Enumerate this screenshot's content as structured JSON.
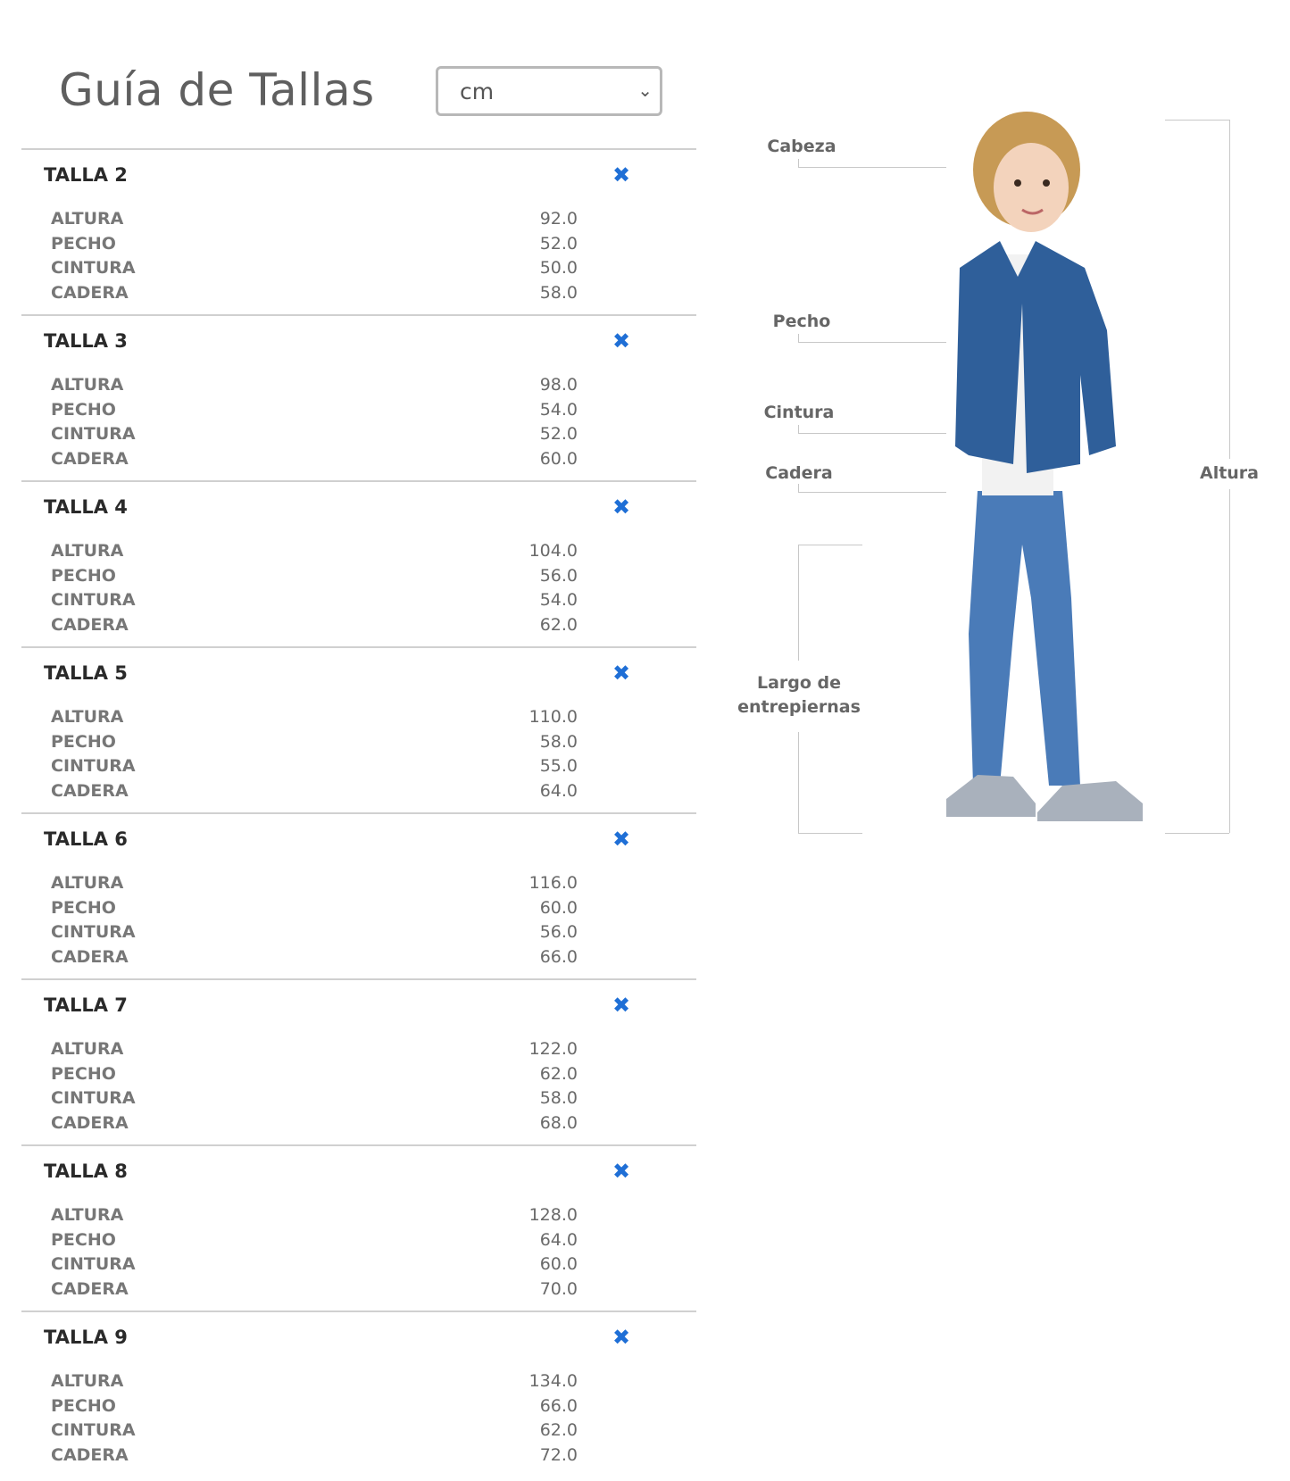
{
  "header": {
    "title": "Guía de Tallas",
    "unit_select": {
      "value": "cm",
      "icon": "chevron-down-icon"
    }
  },
  "close_icon": "close-x-icon",
  "accent_color": "#1f6fd6",
  "sizes": [
    {
      "title": "TALLA 2",
      "rows": [
        {
          "label": "ALTURA",
          "value": "92.0"
        },
        {
          "label": "PECHO",
          "value": "52.0"
        },
        {
          "label": "CINTURA",
          "value": "50.0"
        },
        {
          "label": "CADERA",
          "value": "58.0"
        }
      ]
    },
    {
      "title": "TALLA 3",
      "rows": [
        {
          "label": "ALTURA",
          "value": "98.0"
        },
        {
          "label": "PECHO",
          "value": "54.0"
        },
        {
          "label": "CINTURA",
          "value": "52.0"
        },
        {
          "label": "CADERA",
          "value": "60.0"
        }
      ]
    },
    {
      "title": "TALLA 4",
      "rows": [
        {
          "label": "ALTURA",
          "value": "104.0"
        },
        {
          "label": "PECHO",
          "value": "56.0"
        },
        {
          "label": "CINTURA",
          "value": "54.0"
        },
        {
          "label": "CADERA",
          "value": "62.0"
        }
      ]
    },
    {
      "title": "TALLA 5",
      "rows": [
        {
          "label": "ALTURA",
          "value": "110.0"
        },
        {
          "label": "PECHO",
          "value": "58.0"
        },
        {
          "label": "CINTURA",
          "value": "55.0"
        },
        {
          "label": "CADERA",
          "value": "64.0"
        }
      ]
    },
    {
      "title": "TALLA 6",
      "rows": [
        {
          "label": "ALTURA",
          "value": "116.0"
        },
        {
          "label": "PECHO",
          "value": "60.0"
        },
        {
          "label": "CINTURA",
          "value": "56.0"
        },
        {
          "label": "CADERA",
          "value": "66.0"
        }
      ]
    },
    {
      "title": "TALLA 7",
      "rows": [
        {
          "label": "ALTURA",
          "value": "122.0"
        },
        {
          "label": "PECHO",
          "value": "62.0"
        },
        {
          "label": "CINTURA",
          "value": "58.0"
        },
        {
          "label": "CADERA",
          "value": "68.0"
        }
      ]
    },
    {
      "title": "TALLA 8",
      "rows": [
        {
          "label": "ALTURA",
          "value": "128.0"
        },
        {
          "label": "PECHO",
          "value": "64.0"
        },
        {
          "label": "CINTURA",
          "value": "60.0"
        },
        {
          "label": "CADERA",
          "value": "70.0"
        }
      ]
    },
    {
      "title": "TALLA 9",
      "rows": [
        {
          "label": "ALTURA",
          "value": "134.0"
        },
        {
          "label": "PECHO",
          "value": "66.0"
        },
        {
          "label": "CINTURA",
          "value": "62.0"
        },
        {
          "label": "CADERA",
          "value": "72.0"
        }
      ]
    }
  ],
  "diagram": {
    "cabeza": "Cabeza",
    "pecho": "Pecho",
    "cintura": "Cintura",
    "cadera": "Cadera",
    "largo_line1": "Largo de",
    "largo_line2": "entrepiernas",
    "altura": "Altura"
  }
}
